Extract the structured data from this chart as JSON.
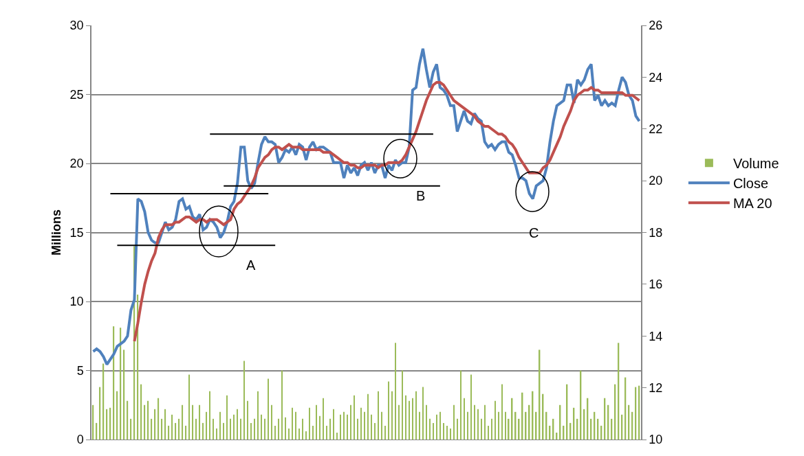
{
  "chart_data": {
    "type": "bar",
    "ylabel": "Millions",
    "categories": [
      null,
      null,
      null,
      null,
      null,
      null,
      null,
      null,
      null,
      null,
      null,
      null,
      null,
      null,
      null,
      null,
      null,
      null,
      null,
      null,
      null,
      null,
      null,
      null,
      null,
      null,
      null,
      null,
      null,
      null,
      null,
      null,
      null,
      null,
      null,
      null,
      null,
      null,
      null,
      null,
      null,
      null,
      null,
      null,
      null,
      null,
      null,
      null,
      null,
      null,
      null,
      null,
      null,
      null,
      null,
      null,
      null,
      null,
      null,
      null,
      null,
      null,
      null,
      null,
      null,
      null,
      null,
      null,
      null,
      null,
      null,
      null,
      null,
      null,
      null,
      null,
      null,
      null,
      null,
      null,
      null,
      null,
      null,
      null,
      null,
      null,
      null,
      null,
      null,
      null,
      null,
      null,
      null,
      null,
      null,
      null,
      null,
      null,
      null,
      null,
      null,
      null,
      null,
      null,
      null,
      null,
      null,
      null,
      null,
      null,
      null,
      null,
      null,
      null,
      null,
      null,
      null,
      null,
      null,
      null,
      null,
      null,
      null,
      null,
      null,
      null,
      null,
      null,
      null,
      null,
      null,
      null,
      null,
      null,
      null,
      null,
      null,
      null,
      null,
      null,
      null,
      null,
      null,
      null,
      null,
      null,
      null,
      null,
      null,
      null,
      null,
      null,
      null,
      null,
      null,
      null,
      null,
      null,
      null,
      null
    ],
    "ylim": [
      0,
      30
    ],
    "yticks": [
      0,
      5,
      10,
      15,
      20,
      25,
      30
    ],
    "y2lim": [
      10,
      26
    ],
    "y2ticks": [
      10,
      12,
      14,
      16,
      18,
      20,
      22,
      24,
      26
    ],
    "grid": "y",
    "legend": "right",
    "tick_labels": "y",
    "annotations": [
      "A",
      "B",
      "C"
    ],
    "series": [
      {
        "name": "Volume",
        "color": "#9bbb59",
        "values": [
          2.5,
          1.2,
          3.8,
          5.5,
          2.2,
          2.3,
          8.2,
          3.5,
          8.1,
          6.5,
          2.8,
          1.5,
          14.0,
          10.5,
          4.0,
          2.5,
          2.8,
          1.5,
          2.2,
          3.0,
          1.5,
          2.2,
          1.0,
          1.8,
          1.2,
          1.5,
          2.5,
          1.0,
          4.7,
          2.5,
          1.5,
          2.5,
          1.2,
          2.0,
          3.5,
          1.5,
          0.8,
          2.0,
          1.2,
          3.2,
          1.5,
          1.8,
          2.2,
          1.5,
          5.7,
          2.8,
          1.2,
          1.5,
          3.5,
          1.8,
          1.5,
          4.4,
          2.5,
          1.0,
          1.5,
          5.0,
          1.6,
          0.8,
          2.3,
          2.0,
          0.8,
          1.5,
          0.6,
          2.3,
          1.0,
          2.5,
          1.7,
          3.0,
          1.0,
          1.5,
          2.2,
          0.5,
          1.8,
          2.0,
          1.8,
          2.5,
          3.2,
          1.5,
          2.3,
          2.0,
          3.3,
          1.8,
          1.2,
          3.5,
          2.0,
          1.0,
          4.2,
          3.5,
          7.0,
          2.5,
          5.0,
          3.2,
          2.8,
          3.0,
          3.5,
          2.0,
          3.8,
          2.5,
          1.5,
          1.2,
          1.8,
          2.0,
          1.2,
          1.0,
          0.8,
          2.5,
          1.5,
          5.0,
          3.0,
          2.0,
          4.7,
          2.5,
          2.2,
          1.5,
          2.5,
          1.0,
          1.5,
          2.8,
          2.0,
          4.0,
          2.0,
          1.5,
          3.0,
          2.0,
          1.5,
          3.4,
          2.0,
          2.5,
          3.5,
          2.0,
          6.5,
          3.3,
          2.0,
          1.0,
          1.5,
          0.5,
          2.5,
          1.0,
          4.0,
          1.2,
          2.3,
          1.5,
          5.0,
          2.2,
          3.0,
          1.5,
          2.0,
          1.5,
          1.0,
          3.0,
          2.5,
          1.5,
          4.0,
          7.0,
          1.8,
          4.5,
          2.5,
          2.0,
          3.8,
          3.9
        ]
      },
      {
        "name": "Close",
        "type": "line",
        "axis": "y2",
        "color": "#4f81bd",
        "values": [
          13.4,
          13.5,
          13.4,
          13.2,
          12.9,
          13.1,
          13.3,
          13.6,
          13.7,
          13.8,
          14.0,
          15.0,
          15.4,
          19.3,
          19.2,
          18.8,
          18.0,
          17.7,
          17.6,
          17.6,
          18.0,
          18.4,
          18.1,
          18.2,
          18.5,
          19.2,
          19.3,
          18.9,
          19.0,
          18.6,
          18.5,
          18.7,
          18.1,
          18.2,
          18.5,
          18.4,
          18.2,
          17.8,
          18.0,
          18.4,
          19.0,
          19.2,
          19.9,
          21.3,
          21.3,
          20.0,
          19.7,
          19.9,
          20.7,
          21.4,
          21.7,
          21.5,
          21.5,
          21.4,
          20.7,
          20.9,
          21.2,
          21.1,
          21.3,
          21.0,
          21.4,
          21.3,
          20.8,
          21.3,
          21.5,
          21.2,
          21.3,
          21.3,
          21.2,
          21.1,
          20.7,
          20.7,
          20.7,
          20.1,
          20.6,
          20.3,
          20.5,
          20.2,
          20.6,
          20.7,
          20.4,
          20.7,
          20.3,
          20.6,
          20.6,
          20.1,
          20.6,
          20.4,
          20.8,
          20.6,
          20.7,
          20.7,
          21.3,
          23.5,
          23.6,
          24.5,
          25.1,
          24.3,
          23.6,
          24.2,
          24.5,
          23.6,
          23.5,
          23.3,
          22.9,
          22.9,
          21.9,
          22.3,
          22.7,
          22.3,
          22.2,
          22.6,
          22.4,
          22.3,
          21.5,
          21.3,
          21.4,
          21.2,
          21.4,
          21.5,
          21.5,
          21.1,
          21.0,
          20.6,
          20.1,
          20.1,
          20.0,
          19.5,
          19.3,
          19.8,
          19.9,
          20.0,
          20.5,
          21.5,
          22.3,
          22.9,
          23.0,
          23.1,
          23.7,
          23.7,
          23.0,
          23.9,
          23.7,
          23.9,
          24.3,
          24.5,
          23.1,
          23.3,
          22.9,
          23.1,
          22.9,
          23.0,
          22.9,
          23.5,
          24.0,
          23.8,
          23.3,
          23.1,
          22.5,
          22.3
        ]
      },
      {
        "name": "MA 20",
        "type": "line",
        "axis": "y2",
        "color": "#c0504d",
        "values": [
          null,
          null,
          null,
          null,
          null,
          null,
          null,
          null,
          null,
          null,
          null,
          null,
          13.8,
          14.5,
          15.3,
          16.0,
          16.5,
          16.9,
          17.2,
          17.8,
          18.1,
          18.3,
          18.3,
          18.3,
          18.4,
          18.4,
          18.5,
          18.6,
          18.6,
          18.5,
          18.4,
          18.5,
          18.5,
          18.4,
          18.5,
          18.5,
          18.5,
          18.4,
          18.3,
          18.4,
          18.5,
          18.9,
          19.1,
          19.2,
          19.4,
          19.6,
          19.8,
          20.1,
          20.5,
          20.7,
          20.9,
          21.0,
          21.2,
          21.3,
          21.3,
          21.2,
          21.3,
          21.4,
          21.3,
          21.3,
          21.3,
          21.2,
          21.2,
          21.2,
          21.2,
          21.2,
          21.2,
          21.1,
          21.1,
          21.1,
          21.0,
          20.9,
          20.8,
          20.7,
          20.7,
          20.6,
          20.6,
          20.5,
          20.5,
          20.6,
          20.6,
          20.6,
          20.6,
          20.5,
          20.6,
          20.6,
          20.7,
          20.7,
          20.7,
          20.7,
          20.8,
          21.0,
          21.3,
          21.6,
          21.9,
          22.3,
          22.7,
          23.1,
          23.4,
          23.7,
          23.8,
          23.8,
          23.7,
          23.5,
          23.3,
          23.1,
          23.0,
          22.9,
          22.8,
          22.7,
          22.6,
          22.5,
          22.3,
          22.2,
          22.1,
          22.1,
          22.0,
          21.9,
          21.8,
          21.8,
          21.7,
          21.5,
          21.4,
          21.2,
          20.9,
          20.7,
          20.5,
          20.3,
          20.3,
          20.3,
          20.3,
          20.5,
          20.6,
          20.8,
          21.1,
          21.4,
          21.7,
          22.1,
          22.4,
          22.7,
          23.1,
          23.3,
          23.4,
          23.5,
          23.5,
          23.6,
          23.5,
          23.5,
          23.4,
          23.4,
          23.4,
          23.4,
          23.4,
          23.4,
          23.4,
          23.3,
          23.3,
          23.3,
          23.2,
          23.1
        ]
      },
      {
        "type": "line",
        "axis": "y2",
        "color": "#000000",
        "values": [
          null,
          null,
          null,
          null,
          null,
          19.5,
          19.5,
          19.5,
          19.5,
          19.5,
          19.5,
          19.5,
          19.5,
          19.5,
          19.5,
          19.5,
          19.5,
          19.5,
          19.5,
          19.5,
          19.5,
          19.5,
          19.5,
          19.5,
          19.5,
          19.5,
          19.5,
          19.5,
          19.5,
          19.5,
          19.5,
          19.5,
          19.5,
          19.5,
          19.5,
          19.5,
          19.5,
          19.5,
          19.5,
          19.5,
          19.5,
          19.5,
          19.5,
          19.5,
          19.5,
          19.5,
          19.5,
          19.5,
          19.5,
          19.5,
          19.5,
          19.5,
          null,
          null,
          null,
          null,
          null,
          null,
          null,
          null,
          null,
          null,
          null,
          null,
          null,
          null,
          null,
          null,
          null,
          null,
          null,
          null,
          null,
          null,
          null,
          null,
          null,
          null,
          null,
          null,
          null,
          null,
          null,
          null,
          null,
          null,
          null,
          null,
          null,
          null,
          null,
          null,
          null,
          null,
          null,
          null,
          null,
          null,
          null,
          null,
          null,
          null,
          null,
          null,
          null,
          null,
          null,
          null,
          null,
          null,
          null,
          null,
          null,
          null,
          null,
          null,
          null,
          null,
          null,
          null,
          null,
          null,
          null,
          null,
          null,
          null,
          null,
          null,
          null,
          null,
          null,
          null,
          null,
          null,
          null,
          null,
          null,
          null,
          null,
          null,
          null,
          null,
          null,
          null,
          null,
          null,
          null,
          null,
          null,
          null,
          null,
          null,
          null,
          null,
          null,
          null,
          null,
          null,
          null,
          null
        ]
      },
      {
        "type": "line",
        "axis": "y2",
        "color": "#000000",
        "values": [
          null,
          null,
          null,
          null,
          null,
          null,
          null,
          17.5,
          17.5,
          17.5,
          17.5,
          17.5,
          17.5,
          17.5,
          17.5,
          17.5,
          17.5,
          17.5,
          17.5,
          17.5,
          17.5,
          17.5,
          17.5,
          17.5,
          17.5,
          17.5,
          17.5,
          17.5,
          17.5,
          17.5,
          17.5,
          17.5,
          17.5,
          17.5,
          17.5,
          17.5,
          17.5,
          17.5,
          17.5,
          17.5,
          17.5,
          17.5,
          17.5,
          17.5,
          17.5,
          17.5,
          17.5,
          17.5,
          17.5,
          17.5,
          17.5,
          17.5,
          17.5,
          17.5,
          null,
          null,
          null,
          null,
          null,
          null,
          null,
          null,
          null,
          null,
          null,
          null,
          null,
          null,
          null,
          null,
          null,
          null,
          null,
          null,
          null,
          null,
          null,
          null,
          null,
          null,
          null,
          null,
          null,
          null,
          null,
          null,
          null,
          null,
          null,
          null,
          null,
          null,
          null,
          null,
          null,
          null,
          null,
          null,
          null,
          null,
          null,
          null,
          null,
          null,
          null,
          null,
          null,
          null,
          null,
          null,
          null,
          null,
          null,
          null,
          null,
          null,
          null,
          null,
          null,
          null,
          null,
          null,
          null,
          null,
          null,
          null,
          null,
          null,
          null,
          null,
          null,
          null,
          null,
          null,
          null,
          null,
          null,
          null,
          null,
          null,
          null,
          null,
          null,
          null,
          null,
          null,
          null,
          null,
          null,
          null,
          null,
          null,
          null,
          null,
          null,
          null,
          null,
          null,
          null,
          null
        ]
      },
      {
        "type": "line",
        "axis": "y2",
        "color": "#000000",
        "values": [
          null,
          null,
          null,
          null,
          null,
          null,
          null,
          null,
          null,
          null,
          null,
          null,
          null,
          null,
          null,
          null,
          null,
          null,
          null,
          null,
          null,
          null,
          null,
          null,
          null,
          null,
          null,
          null,
          null,
          null,
          null,
          null,
          null,
          null,
          21.8,
          21.8,
          21.8,
          21.8,
          21.8,
          21.8,
          21.8,
          21.8,
          21.8,
          21.8,
          21.8,
          21.8,
          21.8,
          21.8,
          21.8,
          21.8,
          21.8,
          21.8,
          21.8,
          21.8,
          21.8,
          21.8,
          21.8,
          21.8,
          21.8,
          21.8,
          21.8,
          21.8,
          21.8,
          21.8,
          21.8,
          21.8,
          21.8,
          21.8,
          21.8,
          21.8,
          21.8,
          21.8,
          21.8,
          21.8,
          21.8,
          21.8,
          21.8,
          21.8,
          21.8,
          21.8,
          21.8,
          21.8,
          21.8,
          21.8,
          21.8,
          21.8,
          21.8,
          21.8,
          21.8,
          21.8,
          21.8,
          21.8,
          21.8,
          21.8,
          21.8,
          21.8,
          21.8,
          21.8,
          21.8,
          21.8,
          null,
          null,
          null,
          null,
          null,
          null,
          null,
          null,
          null,
          null,
          null,
          null,
          null,
          null,
          null,
          null,
          null,
          null,
          null,
          null,
          null,
          null,
          null,
          null,
          null,
          null,
          null,
          null,
          null,
          null,
          null,
          null,
          null,
          null,
          null,
          null,
          null,
          null,
          null,
          null,
          null,
          null,
          null,
          null,
          null,
          null,
          null,
          null,
          null,
          null,
          null,
          null,
          null,
          null,
          null,
          null,
          null,
          null,
          null,
          null
        ]
      },
      {
        "type": "line",
        "axis": "y2",
        "color": "#000000",
        "values": [
          null,
          null,
          null,
          null,
          null,
          null,
          null,
          null,
          null,
          null,
          null,
          null,
          null,
          null,
          null,
          null,
          null,
          null,
          null,
          null,
          null,
          null,
          null,
          null,
          null,
          null,
          null,
          null,
          null,
          null,
          null,
          null,
          null,
          null,
          null,
          null,
          null,
          null,
          19.8,
          19.8,
          19.8,
          19.8,
          19.8,
          19.8,
          19.8,
          19.8,
          19.8,
          19.8,
          19.8,
          19.8,
          19.8,
          19.8,
          19.8,
          19.8,
          19.8,
          19.8,
          19.8,
          19.8,
          19.8,
          19.8,
          19.8,
          19.8,
          19.8,
          19.8,
          19.8,
          19.8,
          19.8,
          19.8,
          19.8,
          19.8,
          19.8,
          19.8,
          19.8,
          19.8,
          19.8,
          19.8,
          19.8,
          19.8,
          19.8,
          19.8,
          19.8,
          19.8,
          19.8,
          19.8,
          19.8,
          19.8,
          19.8,
          19.8,
          19.8,
          19.8,
          19.8,
          19.8,
          19.8,
          19.8,
          19.8,
          19.8,
          19.8,
          19.8,
          19.8,
          19.8,
          19.8,
          19.8,
          null,
          null,
          null,
          null,
          null,
          null,
          null,
          null,
          null,
          null,
          null,
          null,
          null,
          null,
          null,
          null,
          null,
          null,
          null,
          null,
          null,
          null,
          null,
          null,
          null,
          null,
          null,
          null,
          null,
          null,
          null,
          null,
          null,
          null,
          null,
          null,
          null,
          null,
          null,
          null,
          null,
          null,
          null,
          null,
          null,
          null,
          null,
          null,
          null,
          null,
          null,
          null,
          null,
          null,
          null,
          null,
          null,
          null
        ]
      }
    ]
  }
}
